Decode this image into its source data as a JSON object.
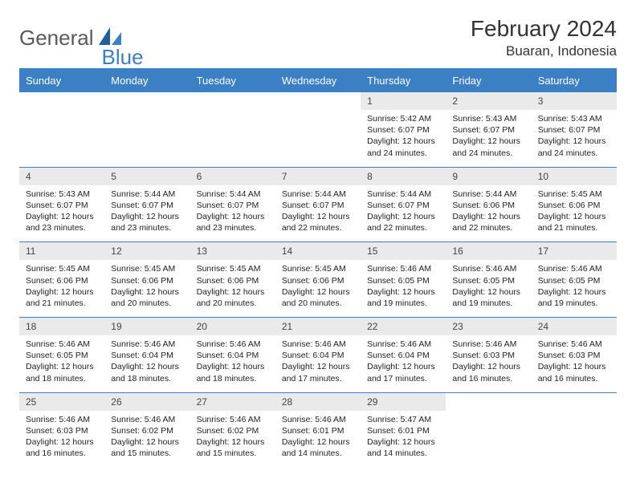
{
  "brand": {
    "word1": "General",
    "word2": "Blue"
  },
  "title": "February 2024",
  "location": "Buaran, Indonesia",
  "colors": {
    "accent": "#3b7fc4",
    "daynum_bg": "#eaeaea",
    "text": "#222222"
  },
  "day_headers": [
    "Sunday",
    "Monday",
    "Tuesday",
    "Wednesday",
    "Thursday",
    "Friday",
    "Saturday"
  ],
  "weeks": [
    {
      "nums": [
        "",
        "",
        "",
        "",
        "1",
        "2",
        "3"
      ],
      "details": [
        "",
        "",
        "",
        "",
        "Sunrise: 5:42 AM\nSunset: 6:07 PM\nDaylight: 12 hours and 24 minutes.",
        "Sunrise: 5:43 AM\nSunset: 6:07 PM\nDaylight: 12 hours and 24 minutes.",
        "Sunrise: 5:43 AM\nSunset: 6:07 PM\nDaylight: 12 hours and 24 minutes."
      ]
    },
    {
      "nums": [
        "4",
        "5",
        "6",
        "7",
        "8",
        "9",
        "10"
      ],
      "details": [
        "Sunrise: 5:43 AM\nSunset: 6:07 PM\nDaylight: 12 hours and 23 minutes.",
        "Sunrise: 5:44 AM\nSunset: 6:07 PM\nDaylight: 12 hours and 23 minutes.",
        "Sunrise: 5:44 AM\nSunset: 6:07 PM\nDaylight: 12 hours and 23 minutes.",
        "Sunrise: 5:44 AM\nSunset: 6:07 PM\nDaylight: 12 hours and 22 minutes.",
        "Sunrise: 5:44 AM\nSunset: 6:07 PM\nDaylight: 12 hours and 22 minutes.",
        "Sunrise: 5:44 AM\nSunset: 6:06 PM\nDaylight: 12 hours and 22 minutes.",
        "Sunrise: 5:45 AM\nSunset: 6:06 PM\nDaylight: 12 hours and 21 minutes."
      ]
    },
    {
      "nums": [
        "11",
        "12",
        "13",
        "14",
        "15",
        "16",
        "17"
      ],
      "details": [
        "Sunrise: 5:45 AM\nSunset: 6:06 PM\nDaylight: 12 hours and 21 minutes.",
        "Sunrise: 5:45 AM\nSunset: 6:06 PM\nDaylight: 12 hours and 20 minutes.",
        "Sunrise: 5:45 AM\nSunset: 6:06 PM\nDaylight: 12 hours and 20 minutes.",
        "Sunrise: 5:45 AM\nSunset: 6:06 PM\nDaylight: 12 hours and 20 minutes.",
        "Sunrise: 5:46 AM\nSunset: 6:05 PM\nDaylight: 12 hours and 19 minutes.",
        "Sunrise: 5:46 AM\nSunset: 6:05 PM\nDaylight: 12 hours and 19 minutes.",
        "Sunrise: 5:46 AM\nSunset: 6:05 PM\nDaylight: 12 hours and 19 minutes."
      ]
    },
    {
      "nums": [
        "18",
        "19",
        "20",
        "21",
        "22",
        "23",
        "24"
      ],
      "details": [
        "Sunrise: 5:46 AM\nSunset: 6:05 PM\nDaylight: 12 hours and 18 minutes.",
        "Sunrise: 5:46 AM\nSunset: 6:04 PM\nDaylight: 12 hours and 18 minutes.",
        "Sunrise: 5:46 AM\nSunset: 6:04 PM\nDaylight: 12 hours and 18 minutes.",
        "Sunrise: 5:46 AM\nSunset: 6:04 PM\nDaylight: 12 hours and 17 minutes.",
        "Sunrise: 5:46 AM\nSunset: 6:04 PM\nDaylight: 12 hours and 17 minutes.",
        "Sunrise: 5:46 AM\nSunset: 6:03 PM\nDaylight: 12 hours and 16 minutes.",
        "Sunrise: 5:46 AM\nSunset: 6:03 PM\nDaylight: 12 hours and 16 minutes."
      ]
    },
    {
      "nums": [
        "25",
        "26",
        "27",
        "28",
        "29",
        "",
        ""
      ],
      "details": [
        "Sunrise: 5:46 AM\nSunset: 6:03 PM\nDaylight: 12 hours and 16 minutes.",
        "Sunrise: 5:46 AM\nSunset: 6:02 PM\nDaylight: 12 hours and 15 minutes.",
        "Sunrise: 5:46 AM\nSunset: 6:02 PM\nDaylight: 12 hours and 15 minutes.",
        "Sunrise: 5:46 AM\nSunset: 6:01 PM\nDaylight: 12 hours and 14 minutes.",
        "Sunrise: 5:47 AM\nSunset: 6:01 PM\nDaylight: 12 hours and 14 minutes.",
        "",
        ""
      ]
    }
  ]
}
